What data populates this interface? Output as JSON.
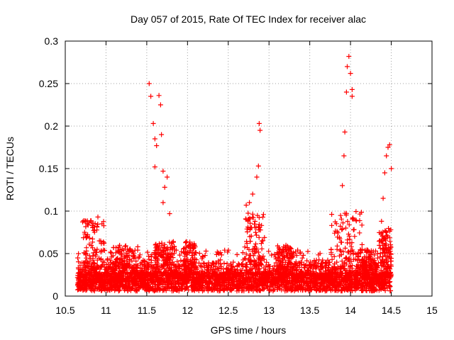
{
  "chart_data": {
    "type": "scatter",
    "title": "Day 057 of 2015, Rate Of TEC Index for receiver alac",
    "xlabel": "GPS time / hours",
    "ylabel": "ROTI / TECUs",
    "xlim": [
      10.5,
      15
    ],
    "ylim": [
      0,
      0.3
    ],
    "xticks": [
      "10.5",
      "11",
      "11.5",
      "12",
      "12.5",
      "13",
      "13.5",
      "14",
      "14.5",
      "15"
    ],
    "yticks": [
      "0",
      "0.05",
      "0.1",
      "0.15",
      "0.2",
      "0.25",
      "0.3"
    ],
    "grid": true,
    "marker": "plus",
    "color": "#ff0000",
    "series": [
      {
        "name": "ROTI",
        "description": "dense baseline of points at 0.005-0.05 TECU over 10.65-14.5 h with enhancement spikes",
        "spikes": [
          {
            "x": 10.9,
            "y": 0.093
          },
          {
            "x": 10.95,
            "y": 0.085
          },
          {
            "x": 11.53,
            "y": 0.25
          },
          {
            "x": 11.55,
            "y": 0.235
          },
          {
            "x": 11.58,
            "y": 0.203
          },
          {
            "x": 11.6,
            "y": 0.185
          },
          {
            "x": 11.62,
            "y": 0.177
          },
          {
            "x": 11.6,
            "y": 0.152
          },
          {
            "x": 11.65,
            "y": 0.236
          },
          {
            "x": 11.67,
            "y": 0.225
          },
          {
            "x": 11.68,
            "y": 0.19
          },
          {
            "x": 11.7,
            "y": 0.147
          },
          {
            "x": 11.72,
            "y": 0.128
          },
          {
            "x": 11.7,
            "y": 0.11
          },
          {
            "x": 11.75,
            "y": 0.14
          },
          {
            "x": 11.78,
            "y": 0.097
          },
          {
            "x": 12.72,
            "y": 0.107
          },
          {
            "x": 12.76,
            "y": 0.11
          },
          {
            "x": 12.8,
            "y": 0.12
          },
          {
            "x": 12.85,
            "y": 0.14
          },
          {
            "x": 12.87,
            "y": 0.153
          },
          {
            "x": 12.88,
            "y": 0.203
          },
          {
            "x": 12.89,
            "y": 0.195
          },
          {
            "x": 13.9,
            "y": 0.13
          },
          {
            "x": 13.92,
            "y": 0.165
          },
          {
            "x": 13.93,
            "y": 0.193
          },
          {
            "x": 13.95,
            "y": 0.24
          },
          {
            "x": 13.96,
            "y": 0.27
          },
          {
            "x": 13.98,
            "y": 0.282
          },
          {
            "x": 14.0,
            "y": 0.262
          },
          {
            "x": 14.02,
            "y": 0.243
          },
          {
            "x": 14.02,
            "y": 0.235
          },
          {
            "x": 14.38,
            "y": 0.088
          },
          {
            "x": 14.4,
            "y": 0.115
          },
          {
            "x": 14.42,
            "y": 0.145
          },
          {
            "x": 14.44,
            "y": 0.165
          },
          {
            "x": 14.46,
            "y": 0.175
          },
          {
            "x": 14.48,
            "y": 0.178
          },
          {
            "x": 14.5,
            "y": 0.15
          }
        ]
      }
    ]
  }
}
